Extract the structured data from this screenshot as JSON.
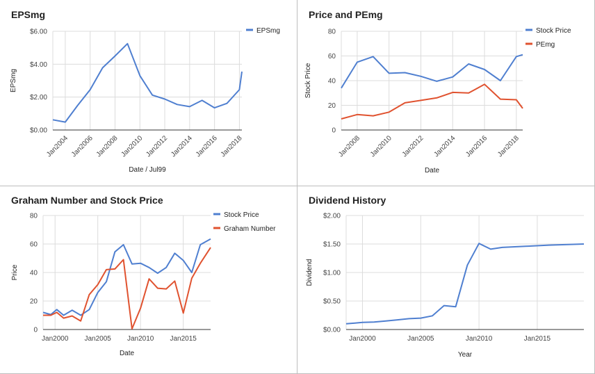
{
  "colors": {
    "blue": "#4f7fd0",
    "red": "#e0522f"
  },
  "chart_data": [
    {
      "type": "line",
      "title": "EPSmg",
      "xlabel": "Date / Jul99",
      "ylabel": "EPSmg",
      "ylim": [
        0,
        6
      ],
      "xlim": [
        2003.0,
        2018.2
      ],
      "yticks": [
        0,
        2,
        4,
        6
      ],
      "ytick_labels": [
        "$0.00",
        "$2.00",
        "$4.00",
        "$6.00"
      ],
      "xticks": [
        2004,
        2006,
        2008,
        2010,
        2012,
        2014,
        2016,
        2018
      ],
      "xtick_labels": [
        "Jan2004",
        "Jan2006",
        "Jan2008",
        "Jan2010",
        "Jan2012",
        "Jan2014",
        "Jan2016",
        "Jan2018"
      ],
      "xtick_rotation": -45,
      "legend": "top-right",
      "series": [
        {
          "name": "EPSmg",
          "color": "#4f7fd0",
          "x": [
            2003.0,
            2004.0,
            2005.0,
            2006.0,
            2007.0,
            2008.0,
            2009.0,
            2010.0,
            2011.0,
            2012.0,
            2013.0,
            2014.0,
            2015.0,
            2016.0,
            2017.0,
            2018.0,
            2018.2
          ],
          "y": [
            0.62,
            0.48,
            1.5,
            2.45,
            3.78,
            4.5,
            5.25,
            3.3,
            2.12,
            1.88,
            1.55,
            1.42,
            1.8,
            1.35,
            1.62,
            2.45,
            3.55
          ]
        }
      ]
    },
    {
      "type": "line",
      "title": "Price and PEmg",
      "xlabel": "Date",
      "ylabel": "Stock Price",
      "ylim": [
        0,
        80
      ],
      "xlim": [
        2007.0,
        2018.4
      ],
      "yticks": [
        0,
        20,
        40,
        60,
        80
      ],
      "ytick_labels": [
        "0",
        "20",
        "40",
        "60",
        "80"
      ],
      "xticks": [
        2008,
        2010,
        2012,
        2014,
        2016,
        2018
      ],
      "xtick_labels": [
        "Jan2008",
        "Jan2010",
        "Jan2012",
        "Jan2014",
        "Jan2016",
        "Jan2018"
      ],
      "xtick_rotation": -45,
      "legend": "top-right",
      "series": [
        {
          "name": "Stock Price",
          "color": "#4f7fd0",
          "x": [
            2007.0,
            2008.0,
            2009.0,
            2010.0,
            2011.0,
            2012.0,
            2013.0,
            2014.0,
            2015.0,
            2016.0,
            2017.0,
            2018.0,
            2018.4
          ],
          "y": [
            34,
            55,
            59.5,
            46,
            46.5,
            43.5,
            39.5,
            43,
            53.5,
            49,
            40,
            59.5,
            61
          ]
        },
        {
          "name": "PEmg",
          "color": "#e0522f",
          "x": [
            2007.0,
            2008.0,
            2009.0,
            2010.0,
            2011.0,
            2012.0,
            2013.0,
            2014.0,
            2015.0,
            2016.0,
            2017.0,
            2018.0,
            2018.4
          ],
          "y": [
            9,
            12.5,
            11.5,
            14.5,
            22,
            24,
            26,
            30.5,
            30,
            37,
            25,
            24.5,
            17.5
          ]
        }
      ]
    },
    {
      "type": "line",
      "title": "Graham Number and Stock Price",
      "xlabel": "Date",
      "ylabel": "Price",
      "ylim": [
        0,
        80
      ],
      "xlim": [
        1998.6,
        2018.2
      ],
      "yticks": [
        0,
        20,
        40,
        60,
        80
      ],
      "ytick_labels": [
        "0",
        "20",
        "40",
        "60",
        "80"
      ],
      "xticks": [
        2000,
        2005,
        2010,
        2015
      ],
      "xtick_labels": [
        "Jan2000",
        "Jan2005",
        "Jan2010",
        "Jan2015"
      ],
      "xtick_rotation": 0,
      "legend": "top-right",
      "series": [
        {
          "name": "Stock Price",
          "color": "#4f7fd0",
          "x": [
            1998.6,
            1999.5,
            2000.2,
            2001.0,
            2002.0,
            2003.0,
            2004.0,
            2005.0,
            2006.0,
            2007.0,
            2008.0,
            2009.0,
            2010.0,
            2011.0,
            2012.0,
            2013.0,
            2014.0,
            2015.0,
            2016.0,
            2017.0,
            2018.2
          ],
          "y": [
            12,
            10.5,
            14,
            10,
            13.5,
            10,
            14,
            26,
            33.5,
            54.5,
            59.5,
            46,
            46.5,
            43.5,
            39.5,
            43.5,
            53.5,
            48.5,
            40,
            59.5,
            63.5
          ]
        },
        {
          "name": "Graham Number",
          "color": "#e0522f",
          "x": [
            1998.6,
            1999.5,
            2000.2,
            2001.0,
            2002.0,
            2003.0,
            2004.0,
            2005.0,
            2006.0,
            2007.0,
            2008.0,
            2009.0,
            2010.0,
            2011.0,
            2012.0,
            2013.0,
            2014.0,
            2015.0,
            2016.0,
            2017.0,
            2018.2
          ],
          "y": [
            10,
            10,
            12,
            8,
            9.5,
            6,
            24.5,
            31.5,
            42,
            42.5,
            49,
            0.5,
            15,
            35.5,
            29,
            28.5,
            34,
            11.5,
            36,
            46.5,
            57.5
          ]
        }
      ]
    },
    {
      "type": "line",
      "title": "Dividend History",
      "xlabel": "Year",
      "ylabel": "Dividend",
      "ylim": [
        0,
        2
      ],
      "xlim": [
        1998.6,
        2019.0
      ],
      "yticks": [
        0,
        0.5,
        1,
        1.5,
        2
      ],
      "ytick_labels": [
        "$0.00",
        "$0.50",
        "$1.00",
        "$1.50",
        "$2.00"
      ],
      "xticks": [
        2000,
        2005,
        2010,
        2015
      ],
      "xtick_labels": [
        "Jan2000",
        "Jan2005",
        "Jan2010",
        "Jan2015"
      ],
      "xtick_rotation": 0,
      "legend": "none",
      "series": [
        {
          "name": "Dividend",
          "color": "#4f7fd0",
          "x": [
            1998.6,
            2000.0,
            2001.0,
            2002.0,
            2003.0,
            2004.0,
            2005.0,
            2006.0,
            2007.0,
            2008.0,
            2009.0,
            2010.0,
            2011.0,
            2012.0,
            2014.0,
            2016.0,
            2019.0
          ],
          "y": [
            0.1,
            0.125,
            0.13,
            0.15,
            0.17,
            0.19,
            0.2,
            0.24,
            0.42,
            0.4,
            1.13,
            1.51,
            1.41,
            1.44,
            1.46,
            1.48,
            1.5
          ]
        }
      ]
    }
  ]
}
